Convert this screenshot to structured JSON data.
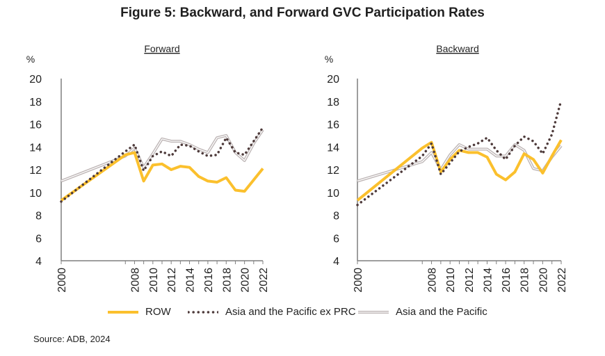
{
  "figure": {
    "title": "Figure 5: Backward, and Forward GVC Participation Rates",
    "source": "Source: ADB, 2024"
  },
  "colors": {
    "row": "#FBC02D",
    "asia_ex_prc": "#4E3B3B",
    "asia_pacific_outer": "#BDB5B5",
    "asia_pacific_inner": "#FFFFFF",
    "axis": "#7F7F7F"
  },
  "legend": [
    {
      "key": "row",
      "label": "ROW"
    },
    {
      "key": "asia_ex_prc",
      "label": "Asia and the Pacific ex PRC"
    },
    {
      "key": "asia_pacific",
      "label": "Asia and the Pacific"
    }
  ],
  "chart_data": [
    {
      "type": "line",
      "title": "Forward",
      "ylabel": "%",
      "ylim": [
        4,
        20
      ],
      "yticks": [
        4,
        6,
        8,
        10,
        12,
        14,
        16,
        18,
        20
      ],
      "x": [
        2000,
        2007,
        2008,
        2009,
        2010,
        2011,
        2012,
        2013,
        2014,
        2015,
        2016,
        2017,
        2018,
        2019,
        2020,
        2021,
        2022
      ],
      "xticks": [
        2000,
        2008,
        2010,
        2012,
        2014,
        2016,
        2018,
        2020,
        2022
      ],
      "series": [
        {
          "name": "ROW",
          "key": "row",
          "values": [
            9.3,
            13.3,
            13.5,
            11.0,
            12.4,
            12.5,
            12.0,
            12.3,
            12.2,
            11.4,
            11.0,
            10.9,
            11.3,
            10.2,
            10.1,
            11.1,
            12.1
          ]
        },
        {
          "name": "Asia and the Pacific ex PRC",
          "key": "asia_ex_prc",
          "values": [
            9.2,
            13.6,
            14.2,
            11.9,
            13.2,
            13.6,
            13.2,
            14.2,
            14.1,
            13.6,
            13.2,
            13.3,
            14.8,
            13.5,
            13.3,
            14.5,
            15.7
          ]
        },
        {
          "name": "Asia and the Pacific",
          "key": "asia_pacific",
          "values": [
            11.0,
            13.2,
            13.9,
            12.2,
            13.4,
            14.7,
            14.5,
            14.5,
            14.2,
            13.8,
            13.5,
            14.8,
            15.0,
            13.5,
            12.8,
            14.3,
            15.5
          ]
        }
      ]
    },
    {
      "type": "line",
      "title": "Backward",
      "ylabel": "%",
      "ylim": [
        4,
        20
      ],
      "yticks": [
        4,
        6,
        8,
        10,
        12,
        14,
        16,
        18,
        20
      ],
      "x": [
        2000,
        2007,
        2008,
        2009,
        2010,
        2011,
        2012,
        2013,
        2014,
        2015,
        2016,
        2017,
        2018,
        2019,
        2020,
        2021,
        2022
      ],
      "xticks": [
        2000,
        2008,
        2010,
        2012,
        2014,
        2016,
        2018,
        2020,
        2022
      ],
      "series": [
        {
          "name": "ROW",
          "key": "row",
          "values": [
            9.3,
            13.9,
            14.4,
            11.8,
            12.9,
            13.7,
            13.5,
            13.5,
            13.1,
            11.6,
            11.1,
            11.8,
            13.4,
            12.9,
            11.7,
            13.2,
            14.6
          ]
        },
        {
          "name": "Asia and the Pacific ex PRC",
          "key": "asia_ex_prc",
          "values": [
            8.9,
            13.2,
            14.3,
            11.6,
            12.6,
            13.6,
            14.0,
            14.3,
            14.8,
            13.7,
            12.9,
            14.1,
            14.9,
            14.5,
            13.4,
            15.1,
            18.1
          ]
        },
        {
          "name": "Asia and the Pacific",
          "key": "asia_pacific",
          "values": [
            11.0,
            12.7,
            13.5,
            12.0,
            13.3,
            14.2,
            13.8,
            13.8,
            13.8,
            13.2,
            13.2,
            14.2,
            13.7,
            12.1,
            11.9,
            13.1,
            14.1
          ]
        }
      ]
    }
  ]
}
